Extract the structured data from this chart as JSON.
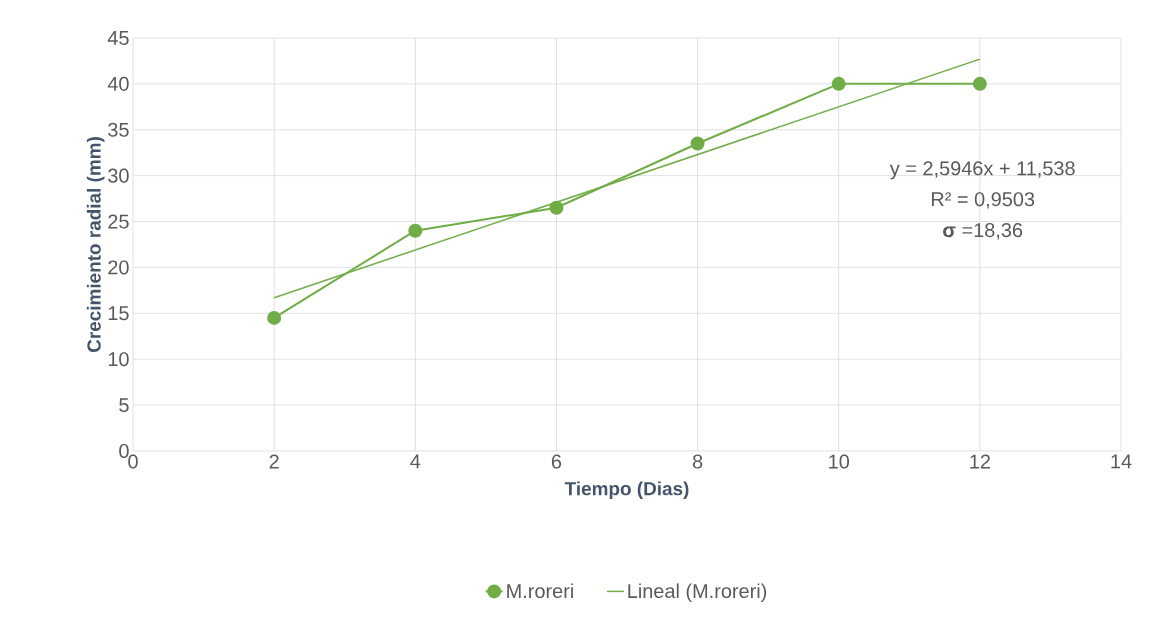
{
  "chart_data": {
    "type": "line",
    "xlabel": "Tiempo (Dias)",
    "ylabel": "Crecimiento radial (mm)",
    "x": [
      2,
      4,
      6,
      8,
      10,
      12
    ],
    "series": [
      {
        "name": "M.roreri",
        "color": "#70ad47",
        "values": [
          14.5,
          24,
          26.5,
          33.5,
          40,
          40
        ]
      },
      {
        "name": "Lineal (M.roreri)",
        "color": "#70ad47",
        "x": [
          2,
          12
        ],
        "values": [
          16.7,
          42.7
        ],
        "marker": "none"
      }
    ],
    "xlim": [
      0,
      14
    ],
    "xticks": [
      0,
      2,
      4,
      6,
      8,
      10,
      12,
      14
    ],
    "ylim": [
      0,
      45
    ],
    "yticks": [
      0,
      5,
      10,
      15,
      20,
      25,
      30,
      35,
      40,
      45
    ],
    "annotations": [
      "y = 2,5946x + 11,538",
      "R² = 0,9503",
      "**σ** =18,36"
    ],
    "grid": true,
    "legend": "bottom",
    "marker": "circle",
    "line_style": "solid"
  }
}
